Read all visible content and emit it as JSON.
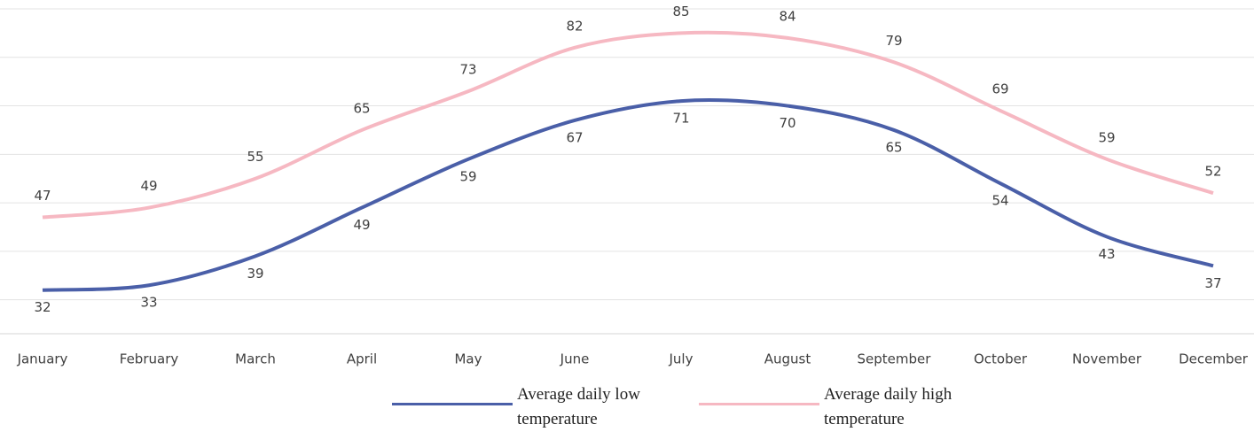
{
  "chart_data": {
    "type": "line",
    "categories": [
      "January",
      "February",
      "March",
      "April",
      "May",
      "June",
      "July",
      "August",
      "September",
      "October",
      "November",
      "December"
    ],
    "series": [
      {
        "name": "Average daily low temperature",
        "color": "#4a5fa8",
        "values": [
          32,
          33,
          39,
          49,
          59,
          67,
          71,
          70,
          65,
          54,
          43,
          37
        ]
      },
      {
        "name": "Average daily high temperature",
        "color": "#f6b8c2",
        "values": [
          47,
          49,
          55,
          65,
          73,
          82,
          85,
          84,
          79,
          69,
          59,
          52
        ]
      }
    ],
    "ylim": [
      23,
      90
    ],
    "yticks": [
      30,
      40,
      50,
      60,
      70,
      80,
      90
    ],
    "grid": true,
    "smooth": true,
    "legend": "bottom"
  }
}
